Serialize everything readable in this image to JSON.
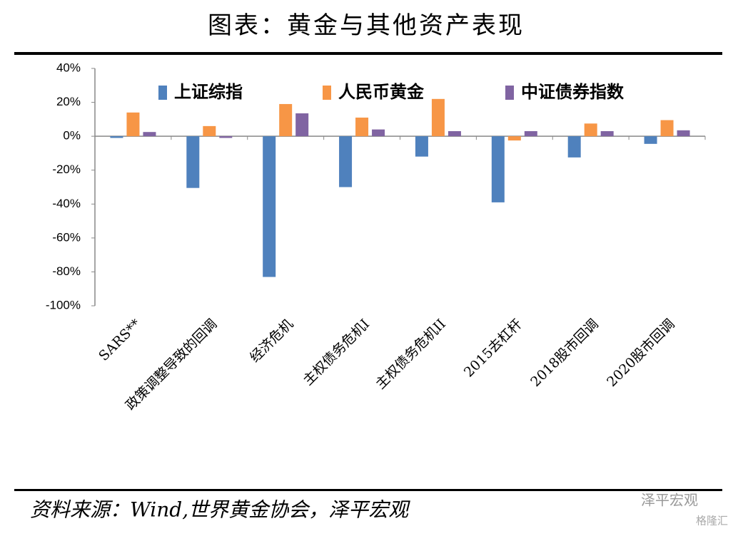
{
  "chart_data": {
    "type": "bar",
    "title": "图表：黄金与其他资产表现",
    "source": "资料来源：Wind,世界黄金协会，泽平宏观",
    "watermark": [
      "泽平宏观",
      "格隆汇"
    ],
    "categories": [
      "SARS**",
      "政策调整导致的回调",
      "经济危机",
      "主权债务危机I",
      "主权债务危机II",
      "2015去杠杆",
      "2018股市回调",
      "2020股市回调"
    ],
    "series": [
      {
        "name": "上证综指",
        "color": "#4f81bd",
        "values": [
          -1,
          -30.5,
          -83,
          -30,
          -12,
          -39,
          -12.5,
          -4.5
        ]
      },
      {
        "name": "人民币黄金",
        "color": "#f79646",
        "values": [
          14,
          6,
          19,
          11,
          22,
          -2.5,
          7.5,
          9.5
        ]
      },
      {
        "name": "中证债券指数",
        "color": "#8064a2",
        "values": [
          2.5,
          -1,
          13.5,
          4,
          3,
          3,
          3,
          3.5
        ]
      }
    ],
    "ylim": [
      -100,
      40
    ],
    "yticks": [
      {
        "value": 40,
        "label": "40%"
      },
      {
        "value": 20,
        "label": "20%"
      },
      {
        "value": 0,
        "label": "0%"
      },
      {
        "value": -20,
        "label": "-20%"
      },
      {
        "value": -40,
        "label": "-40%"
      },
      {
        "value": -60,
        "label": "-60%"
      },
      {
        "value": -80,
        "label": "-80%"
      },
      {
        "value": -100,
        "label": "-100%"
      }
    ],
    "legend": "top",
    "grid": false
  }
}
